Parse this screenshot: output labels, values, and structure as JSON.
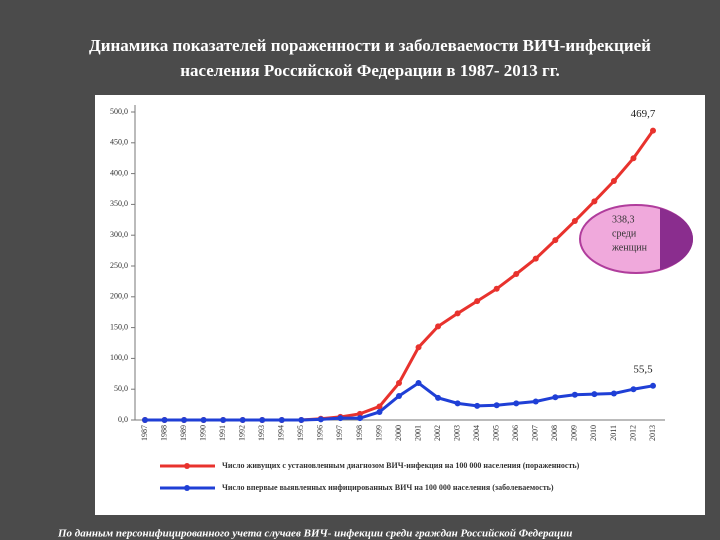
{
  "title": [
    "Динамика показателей пораженности и заболеваемости  ВИЧ-инфекцией",
    "населения Российской Федерации  в 1987- 2013 гг."
  ],
  "footer": "По данным персонифицированного учета случаев ВИЧ- инфекции среди граждан Российской Федерации",
  "chart_data": {
    "type": "line",
    "categories": [
      "1987",
      "1988",
      "1989",
      "1990",
      "1991",
      "1992",
      "1993",
      "1994",
      "1995",
      "1996",
      "1997",
      "1998",
      "1999",
      "2000",
      "2001",
      "2002",
      "2003",
      "2004",
      "2005",
      "2006",
      "2007",
      "2008",
      "2009",
      "2010",
      "2011",
      "2012",
      "2013"
    ],
    "series": [
      {
        "name": "Число живущих с установленным диагнозом ВИЧ-инфекция на 100 000 населения (пораженность)",
        "color": "#e8322d",
        "values": [
          0,
          0,
          0,
          0,
          0,
          0,
          0,
          0,
          0,
          2,
          5,
          10,
          22,
          60,
          118,
          152,
          173,
          193,
          213,
          237,
          262,
          292,
          323,
          355,
          388,
          425,
          469.7
        ],
        "value_labels": [
          null,
          null,
          null,
          null,
          null,
          null,
          null,
          null,
          null,
          null,
          null,
          null,
          null,
          null,
          null,
          null,
          null,
          null,
          null,
          null,
          null,
          null,
          null,
          null,
          null,
          null,
          "469,7"
        ]
      },
      {
        "name": "Число впервые выявленных инфицированных ВИЧ на 100 000 населения (заболеваемость)",
        "color": "#1f3fd6",
        "values": [
          0,
          0,
          0,
          0,
          0,
          0,
          0,
          0,
          0,
          1,
          3,
          3,
          13,
          39,
          60,
          36,
          27,
          23,
          24,
          27,
          30,
          37,
          41,
          42,
          43,
          50,
          55.5
        ],
        "value_labels": [
          null,
          null,
          null,
          null,
          null,
          null,
          null,
          null,
          null,
          null,
          null,
          null,
          null,
          null,
          null,
          null,
          null,
          null,
          null,
          null,
          null,
          null,
          null,
          null,
          null,
          null,
          "55,5"
        ]
      }
    ],
    "ylim": [
      0,
      500
    ],
    "yticks": [
      {
        "value": 0,
        "label": "0,0"
      },
      {
        "value": 50,
        "label": "50,0"
      },
      {
        "value": 100,
        "label": "100,0"
      },
      {
        "value": 150,
        "label": "150,0"
      },
      {
        "value": 200,
        "label": "200,0"
      },
      {
        "value": 250,
        "label": "250,0"
      },
      {
        "value": 300,
        "label": "300,0"
      },
      {
        "value": 350,
        "label": "350,0"
      },
      {
        "value": 400,
        "label": "400,0"
      },
      {
        "value": 450,
        "label": "450,0"
      },
      {
        "value": 500,
        "label": "500,0"
      }
    ],
    "annotation": [
      "338,3",
      "среди",
      "женщин"
    ],
    "grid": false
  }
}
